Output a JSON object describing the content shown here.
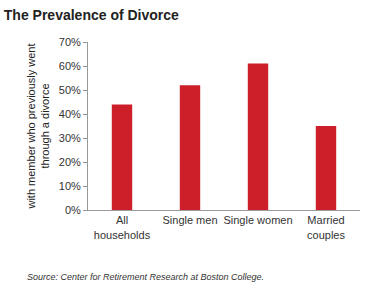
{
  "chart_data": {
    "type": "bar",
    "title": "The Prevalence of Divorce",
    "ylabel_lines": [
      "with member who previously went",
      "through a divorce"
    ],
    "source": "Source: Center for Retirement Research at Boston College.",
    "categories": [
      "All households",
      "Single men",
      "Single women",
      "Married couples"
    ],
    "values": [
      44,
      52,
      61,
      35
    ],
    "color": "#cc1f2a",
    "ylim": [
      0,
      70
    ],
    "yticks": [
      {
        "value": 0,
        "label": "0%"
      },
      {
        "value": 10,
        "label": "10%"
      },
      {
        "value": 20,
        "label": "20%"
      },
      {
        "value": 30,
        "label": "30%"
      },
      {
        "value": 40,
        "label": "40%"
      },
      {
        "value": 50,
        "label": "50%"
      },
      {
        "value": 60,
        "label": "60%"
      },
      {
        "value": 70,
        "label": "70%"
      }
    ],
    "grid": false
  }
}
